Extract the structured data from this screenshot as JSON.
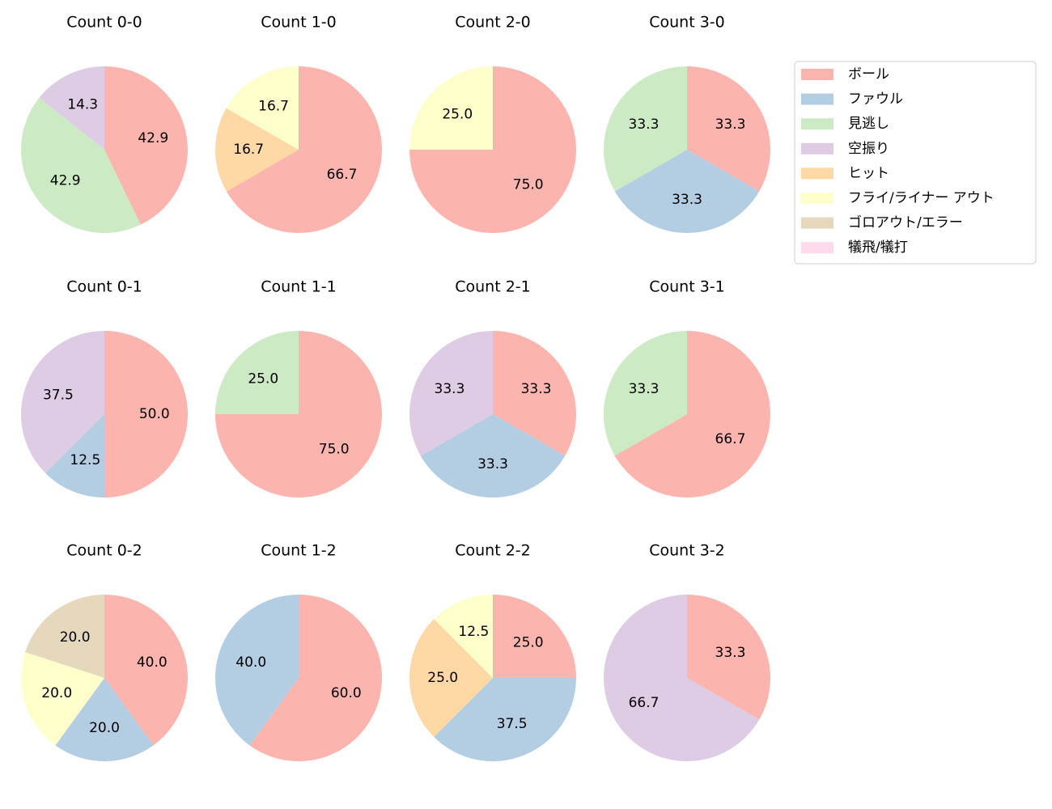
{
  "legend": {
    "labels": [
      "ボール",
      "ファウル",
      "見逃し",
      "空振り",
      "ヒット",
      "フライ/ライナー アウト",
      "ゴロアウト/エラー",
      "犠飛/犠打"
    ],
    "colors": [
      "#fbb4ae",
      "#b3cde3",
      "#ccebc5",
      "#decbe4",
      "#fed9a6",
      "#ffffcc",
      "#e5d8bd",
      "#fddaec"
    ],
    "position": "upper right"
  },
  "chart_data": [
    {
      "type": "pie",
      "title": "Count 0-0",
      "values": [
        42.9,
        null,
        42.9,
        14.3,
        null,
        null,
        null,
        null
      ],
      "value_labels": [
        "42.9",
        null,
        "42.9",
        "14.3",
        null,
        null,
        null,
        null
      ]
    },
    {
      "type": "pie",
      "title": "Count 1-0",
      "values": [
        66.7,
        null,
        null,
        null,
        16.7,
        16.7,
        null,
        null
      ],
      "value_labels": [
        "66.7",
        null,
        null,
        null,
        "16.7",
        "16.7",
        null,
        null
      ]
    },
    {
      "type": "pie",
      "title": "Count 2-0",
      "values": [
        75.0,
        null,
        null,
        null,
        null,
        25.0,
        null,
        null
      ],
      "value_labels": [
        "75.0",
        null,
        null,
        null,
        null,
        "25.0",
        null,
        null
      ]
    },
    {
      "type": "pie",
      "title": "Count 3-0",
      "values": [
        33.3,
        33.3,
        33.3,
        null,
        null,
        null,
        null,
        null
      ],
      "value_labels": [
        "33.3",
        "33.3",
        "33.3",
        null,
        null,
        null,
        null,
        null
      ]
    },
    {
      "type": "pie",
      "title": "Count 0-1",
      "values": [
        50.0,
        12.5,
        null,
        37.5,
        null,
        null,
        null,
        null
      ],
      "value_labels": [
        "50.0",
        "12.5",
        null,
        "37.5",
        null,
        null,
        null,
        null
      ]
    },
    {
      "type": "pie",
      "title": "Count 1-1",
      "values": [
        75.0,
        null,
        25.0,
        null,
        null,
        null,
        null,
        null
      ],
      "value_labels": [
        "75.0",
        null,
        "25.0",
        null,
        null,
        null,
        null,
        null
      ]
    },
    {
      "type": "pie",
      "title": "Count 2-1",
      "values": [
        33.3,
        33.3,
        null,
        33.3,
        null,
        null,
        null,
        null
      ],
      "value_labels": [
        "33.3",
        "33.3",
        null,
        "33.3",
        null,
        null,
        null,
        null
      ]
    },
    {
      "type": "pie",
      "title": "Count 3-1",
      "values": [
        66.7,
        null,
        33.3,
        null,
        null,
        null,
        null,
        null
      ],
      "value_labels": [
        "66.7",
        null,
        "33.3",
        null,
        null,
        null,
        null,
        null
      ]
    },
    {
      "type": "pie",
      "title": "Count 0-2",
      "values": [
        40.0,
        20.0,
        null,
        null,
        null,
        20.0,
        20.0,
        null
      ],
      "value_labels": [
        "40.0",
        "20.0",
        null,
        null,
        null,
        "20.0",
        "20.0",
        null
      ]
    },
    {
      "type": "pie",
      "title": "Count 1-2",
      "values": [
        60.0,
        40.0,
        null,
        null,
        null,
        null,
        null,
        null
      ],
      "value_labels": [
        "60.0",
        "40.0",
        null,
        null,
        null,
        null,
        null,
        null
      ]
    },
    {
      "type": "pie",
      "title": "Count 2-2",
      "values": [
        25.0,
        37.5,
        null,
        null,
        25.0,
        12.5,
        null,
        null
      ],
      "value_labels": [
        "25.0",
        "37.5",
        null,
        null,
        "25.0",
        "12.5",
        null,
        null
      ]
    },
    {
      "type": "pie",
      "title": "Count 3-2",
      "values": [
        33.3,
        null,
        null,
        66.7,
        null,
        null,
        null,
        null
      ],
      "value_labels": [
        "33.3",
        null,
        null,
        "66.7",
        null,
        null,
        null,
        null
      ]
    }
  ]
}
